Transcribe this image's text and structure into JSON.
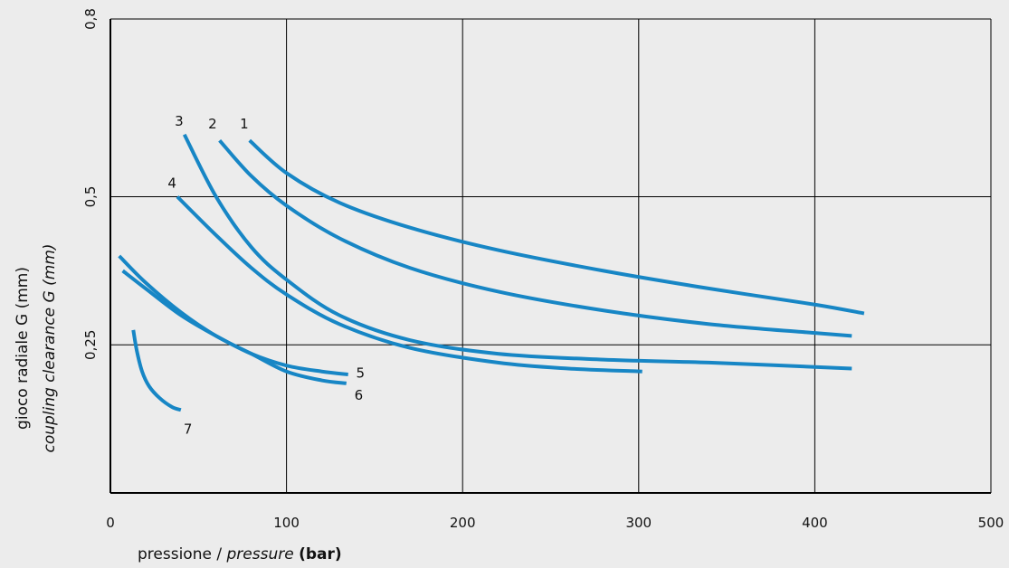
{
  "chart_data": {
    "type": "line",
    "xlabel": {
      "main": "pressione / ",
      "italic": "pressure",
      "bold": "(bar)"
    },
    "ylabel": {
      "line1": "gioco radiale G (mm)",
      "line2": "coupling clearance G (mm)"
    },
    "xlim": [
      0,
      500
    ],
    "ylim": [
      0,
      0.8
    ],
    "x_ticks": [
      0,
      100,
      200,
      300,
      400,
      500
    ],
    "x_tick_labels": [
      "0",
      "100",
      "200",
      "300",
      "400",
      "500"
    ],
    "y_ticks": [
      0.25,
      0.5,
      0.8
    ],
    "y_tick_labels": [
      "0,25",
      "0,5",
      "0,8"
    ],
    "grid": true,
    "line_color": "#1786c5",
    "series": [
      {
        "name": "1",
        "x": [
          79,
          100,
          130,
          170,
          220,
          280,
          340,
          400,
          428
        ],
        "y": [
          0.595,
          0.54,
          0.49,
          0.448,
          0.41,
          0.375,
          0.345,
          0.318,
          0.303
        ]
      },
      {
        "name": "2",
        "x": [
          62,
          80,
          100,
          130,
          170,
          220,
          280,
          340,
          400,
          421
        ],
        "y": [
          0.595,
          0.535,
          0.485,
          0.43,
          0.38,
          0.34,
          0.308,
          0.285,
          0.27,
          0.265
        ]
      },
      {
        "name": "3",
        "x": [
          42,
          60,
          80,
          100,
          130,
          170,
          220,
          280,
          340,
          421
        ],
        "y": [
          0.605,
          0.5,
          0.415,
          0.36,
          0.3,
          0.258,
          0.235,
          0.225,
          0.22,
          0.21
        ]
      },
      {
        "name": "4",
        "x": [
          38,
          60,
          80,
          100,
          130,
          170,
          220,
          260,
          302
        ],
        "y": [
          0.5,
          0.435,
          0.38,
          0.335,
          0.285,
          0.245,
          0.22,
          0.21,
          0.205
        ]
      },
      {
        "name": "5",
        "x": [
          7,
          20,
          40,
          60,
          80,
          100,
          120,
          135
        ],
        "y": [
          0.375,
          0.345,
          0.3,
          0.265,
          0.235,
          0.215,
          0.205,
          0.2
        ]
      },
      {
        "name": "6",
        "x": [
          5,
          20,
          40,
          60,
          80,
          100,
          120,
          134
        ],
        "y": [
          0.4,
          0.355,
          0.305,
          0.265,
          0.235,
          0.205,
          0.19,
          0.185
        ]
      },
      {
        "name": "7",
        "x": [
          13,
          15,
          18,
          22,
          28,
          35,
          40
        ],
        "y": [
          0.275,
          0.24,
          0.205,
          0.18,
          0.16,
          0.145,
          0.14
        ]
      }
    ],
    "curve_labels": [
      {
        "text": "1",
        "x": 76,
        "y": 0.615
      },
      {
        "text": "2",
        "x": 58,
        "y": 0.615
      },
      {
        "text": "3",
        "x": 39,
        "y": 0.62
      },
      {
        "text": "4",
        "x": 35,
        "y": 0.515
      },
      {
        "text": "5",
        "x": 142,
        "y": 0.195
      },
      {
        "text": "6",
        "x": 141,
        "y": 0.157
      },
      {
        "text": "7",
        "x": 44,
        "y": 0.1
      }
    ]
  }
}
